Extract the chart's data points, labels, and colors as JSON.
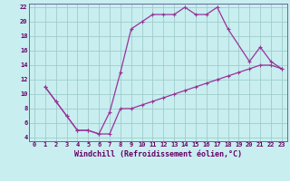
{
  "xlabel": "Windchill (Refroidissement éolien,°C)",
  "bg_color": "#c8eef0",
  "line_color": "#993399",
  "grid_color": "#a0cccc",
  "xlim": [
    -0.5,
    23.5
  ],
  "ylim": [
    3.5,
    22.5
  ],
  "xticks": [
    0,
    1,
    2,
    3,
    4,
    5,
    6,
    7,
    8,
    9,
    10,
    11,
    12,
    13,
    14,
    15,
    16,
    17,
    18,
    19,
    20,
    21,
    22,
    23
  ],
  "yticks": [
    4,
    6,
    8,
    10,
    12,
    14,
    16,
    18,
    20,
    22
  ],
  "upper_x": [
    1,
    2,
    3,
    4,
    5,
    6,
    7,
    8,
    9,
    10,
    11,
    12,
    13,
    14,
    15,
    16,
    17,
    18,
    20,
    21,
    22,
    23
  ],
  "upper_y": [
    11,
    9,
    7,
    5,
    5,
    4.5,
    7.5,
    13,
    19,
    20,
    21,
    21,
    21,
    22,
    21,
    21,
    22,
    19,
    14.5,
    16.5,
    14.5,
    13.5
  ],
  "lower_x": [
    1,
    2,
    3,
    4,
    5,
    6,
    7,
    8,
    9,
    10,
    11,
    12,
    13,
    14,
    15,
    16,
    17,
    18,
    19,
    20,
    21,
    22,
    23
  ],
  "lower_y": [
    11,
    9,
    7,
    5,
    5,
    4.5,
    4.5,
    8,
    8,
    8.5,
    9,
    9.5,
    10,
    10.5,
    11,
    11.5,
    12,
    12.5,
    13,
    13.5,
    14,
    14,
    13.5
  ],
  "font_color": "#660066",
  "tick_fontsize": 5,
  "label_fontsize": 6,
  "spine_color": "#666699"
}
